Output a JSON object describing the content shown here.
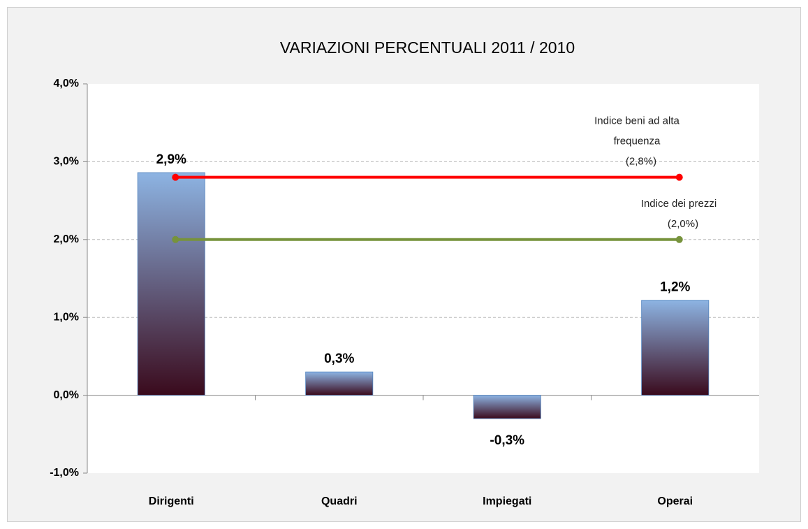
{
  "chart_data": {
    "type": "bar",
    "title": "VARIAZIONI PERCENTUALI 2011 / 2010",
    "categories": [
      "Dirigenti",
      "Quadri",
      "Impiegati",
      "Operai"
    ],
    "values": [
      2.86,
      0.3,
      -0.3,
      1.22
    ],
    "value_labels": [
      "2,9%",
      "0,3%",
      "-0,3%",
      "1,2%"
    ],
    "ylim": [
      -1,
      4
    ],
    "yticks": [
      {
        "value": -1,
        "label": "-1,0%"
      },
      {
        "value": 0,
        "label": "0,0%"
      },
      {
        "value": 1,
        "label": "1,0%"
      },
      {
        "value": 2,
        "label": "2,0%"
      },
      {
        "value": 3,
        "label": "3,0%"
      },
      {
        "value": 4,
        "label": "4,0%"
      }
    ],
    "grid": true,
    "bar_gradient": [
      "#8db4e3",
      "#3a0a1c"
    ],
    "lines": [
      {
        "label_lines": [
          "Indice beni ad alta",
          "frequenza"
        ],
        "value_label": "(2,8%)",
        "color": "#ff0000",
        "values": [
          2.8,
          2.8,
          2.8,
          2.8
        ]
      },
      {
        "label_lines": [
          "Indice dei prezzi"
        ],
        "value_label": "(2,0%)",
        "color": "#77933c",
        "values": [
          2.0,
          2.0,
          2.0,
          2.0
        ]
      }
    ]
  }
}
